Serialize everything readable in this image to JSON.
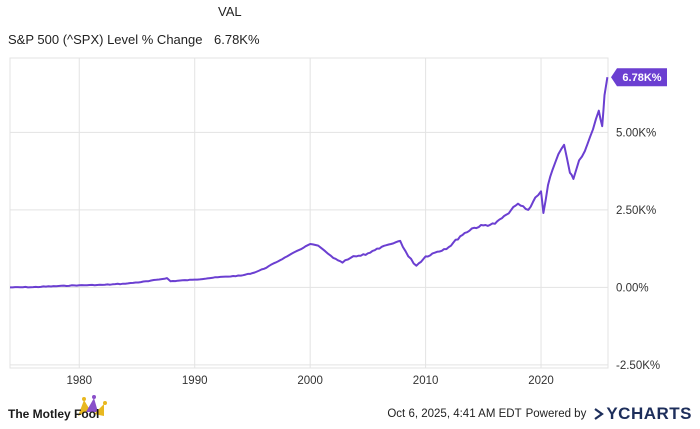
{
  "legend": {
    "column_header": "VAL",
    "series_label": "S&P 500 (^SPX) Level % Change",
    "series_value": "6.78K%"
  },
  "colors": {
    "line": "#6b3fd1",
    "grid": "#e3e3e3",
    "axis_text": "#333333"
  },
  "footer": {
    "brand": "The Motley Fool",
    "brand_icon": "jester-cap-icon",
    "timestamp": "Oct 6, 2025, 4:41 AM EDT",
    "powered_by": "Powered by",
    "ycharts": "YCHARTS"
  },
  "chart_data": {
    "type": "line",
    "title": "",
    "xlabel": "",
    "ylabel": "",
    "x_ticks": [
      "1980",
      "1990",
      "2000",
      "2010",
      "2020"
    ],
    "y_ticks": [
      "-2.50K%",
      "0.00%",
      "2.50K%",
      "5.00K%"
    ],
    "end_label": "6.78K%",
    "xlim": [
      1974.0,
      2025.8
    ],
    "ylim": [
      -2600,
      7400
    ],
    "grid": true,
    "series": [
      {
        "name": "S&P 500 (^SPX) Level % Change",
        "x": [
          1974.0,
          1976.0,
          1978.0,
          1980.0,
          1982.0,
          1984.0,
          1986.0,
          1987.6,
          1987.9,
          1990.0,
          1992.0,
          1994.0,
          1995.0,
          1996.0,
          1997.0,
          1998.0,
          1999.0,
          2000.0,
          2000.7,
          2001.5,
          2002.0,
          2002.8,
          2003.5,
          2004.0,
          2005.0,
          2006.0,
          2007.0,
          2007.8,
          2008.5,
          2009.2,
          2010.0,
          2011.0,
          2012.0,
          2013.0,
          2014.0,
          2015.0,
          2016.0,
          2017.0,
          2018.0,
          2018.9,
          2019.5,
          2020.0,
          2020.2,
          2020.6,
          2021.0,
          2021.5,
          2022.0,
          2022.5,
          2022.8,
          2023.3,
          2023.8,
          2024.0,
          2024.5,
          2025.0,
          2025.3,
          2025.5,
          2025.75
        ],
        "y": [
          0,
          10,
          40,
          70,
          80,
          120,
          200,
          300,
          200,
          250,
          330,
          380,
          460,
          600,
          800,
          1000,
          1200,
          1400,
          1350,
          1100,
          950,
          800,
          950,
          1000,
          1100,
          1250,
          1400,
          1500,
          1000,
          700,
          1000,
          1150,
          1300,
          1650,
          1900,
          2000,
          2050,
          2350,
          2700,
          2500,
          2900,
          3100,
          2400,
          3300,
          3800,
          4300,
          4600,
          3700,
          3500,
          4100,
          4400,
          4600,
          5100,
          5700,
          5200,
          6200,
          6780
        ]
      }
    ]
  }
}
